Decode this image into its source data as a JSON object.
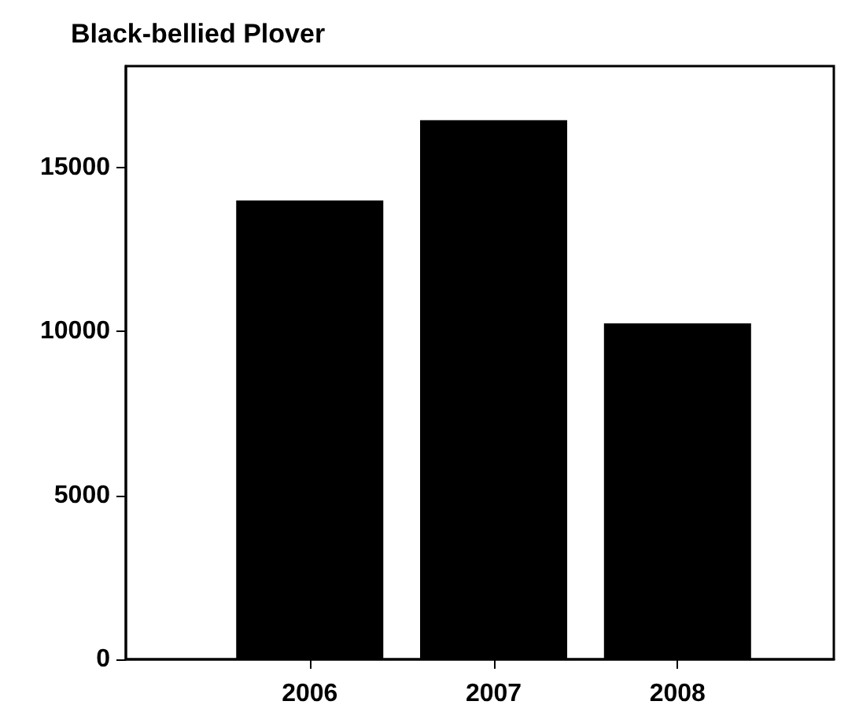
{
  "chart_data": {
    "type": "bar",
    "title": "Black-bellied Plover",
    "x": [
      2006,
      2007,
      2008
    ],
    "xlim": [
      2005,
      2008.85
    ],
    "xticks": [
      2006,
      2007,
      2008
    ],
    "values": [
      14000,
      16450,
      10250
    ],
    "color": "#000000",
    "ylim": [
      0,
      18100
    ],
    "yticks": [
      0,
      5000,
      10000,
      15000
    ],
    "grid": false
  }
}
